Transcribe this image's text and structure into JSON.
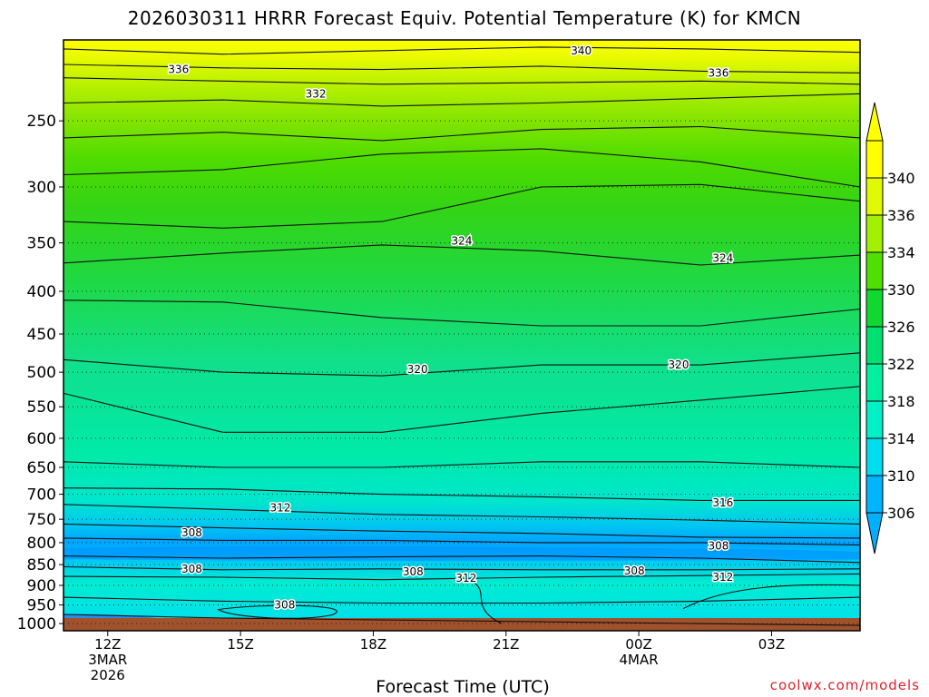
{
  "chart_data": {
    "type": "contour",
    "title": "2026030311 HRRR Forecast Equiv. Potential Temperature (K) for KMCN",
    "xlabel": "Forecast Time (UTC)",
    "ylabel": "",
    "x_ticks": [
      {
        "hour": 0,
        "lines": [
          "12Z",
          "3MAR",
          "2026"
        ]
      },
      {
        "hour": 3,
        "lines": [
          "15Z"
        ]
      },
      {
        "hour": 6,
        "lines": [
          "18Z"
        ]
      },
      {
        "hour": 9,
        "lines": [
          "21Z"
        ]
      },
      {
        "hour": 12,
        "lines": [
          "00Z",
          "4MAR"
        ]
      },
      {
        "hour": 15,
        "lines": [
          "03Z"
        ]
      }
    ],
    "xlim": [
      -1,
      17
    ],
    "y_ticks": [
      250,
      300,
      350,
      400,
      450,
      500,
      550,
      600,
      650,
      700,
      750,
      800,
      850,
      900,
      950,
      1000
    ],
    "ylim": [
      200,
      1020
    ],
    "y_scale": "log-pressure",
    "colorbar_levels": [
      306,
      310,
      314,
      318,
      322,
      326,
      330,
      334,
      336,
      340
    ],
    "colorbar_colors": [
      "#00b4ff",
      "#00dcf0",
      "#00f0c8",
      "#00f0a0",
      "#00e070",
      "#10d830",
      "#50e000",
      "#a0f000",
      "#e0f800",
      "#ffff00"
    ],
    "contour_labels": [
      {
        "value": "340",
        "hour": 10.7,
        "p": 206
      },
      {
        "value": "336",
        "hour": 1.6,
        "p": 217
      },
      {
        "value": "336",
        "hour": 13.8,
        "p": 219
      },
      {
        "value": "332",
        "hour": 4.7,
        "p": 232
      },
      {
        "value": "324",
        "hour": 8,
        "p": 348
      },
      {
        "value": "324",
        "hour": 13.9,
        "p": 365
      },
      {
        "value": "320",
        "hour": 7,
        "p": 496
      },
      {
        "value": "320",
        "hour": 12.9,
        "p": 490
      },
      {
        "value": "316",
        "hour": 13.9,
        "p": 717
      },
      {
        "value": "312",
        "hour": 3.9,
        "p": 727
      },
      {
        "value": "312",
        "hour": 8.1,
        "p": 882
      },
      {
        "value": "312",
        "hour": 13.9,
        "p": 880
      },
      {
        "value": "308",
        "hour": 1.9,
        "p": 778
      },
      {
        "value": "308",
        "hour": 1.9,
        "p": 860
      },
      {
        "value": "308",
        "hour": 6.9,
        "p": 867
      },
      {
        "value": "308",
        "hour": 11.9,
        "p": 865
      },
      {
        "value": "308",
        "hour": 13.8,
        "p": 807
      },
      {
        "value": "308",
        "hour": 4,
        "p": 950
      }
    ],
    "grid": "dotted horizontal",
    "legend": "right"
  },
  "credit": "coolwx.com/models"
}
